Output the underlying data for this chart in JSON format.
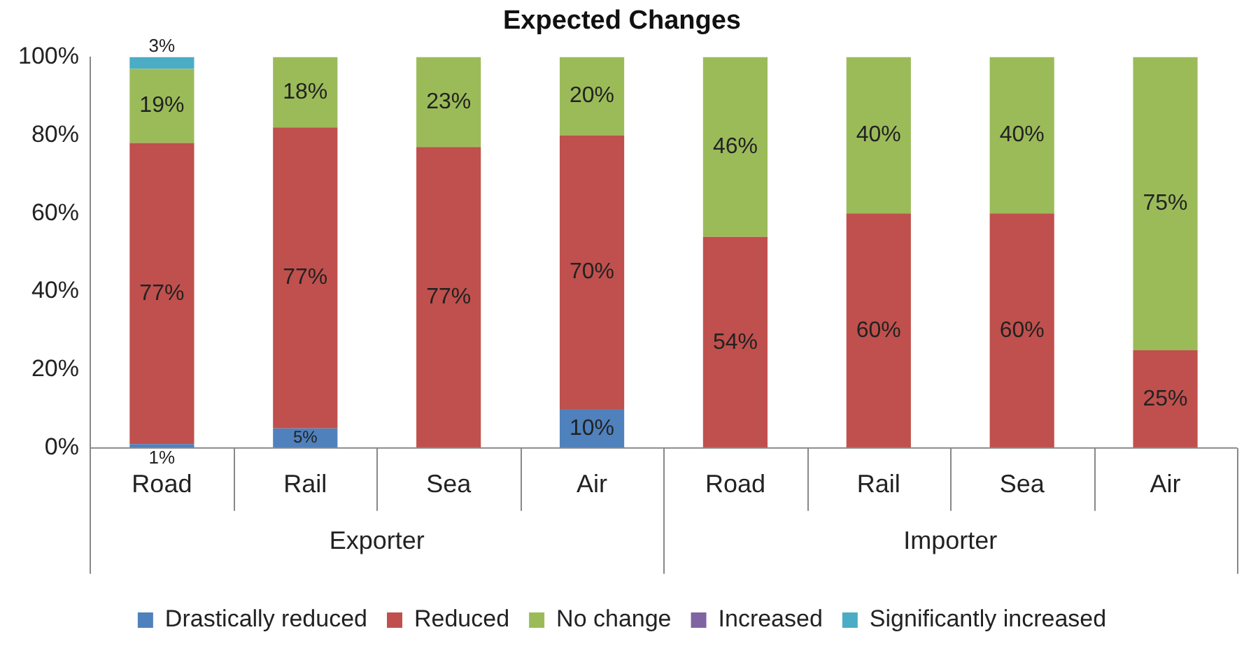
{
  "chart_data": {
    "type": "bar",
    "title": "Expected Changes",
    "stacked": true,
    "grid": false,
    "legend": "bottom",
    "categories": [
      "Road",
      "Rail",
      "Sea",
      "Air",
      "Road",
      "Rail",
      "Sea",
      "Air"
    ],
    "annotations": [
      "Exporter",
      "Importer"
    ],
    "ylim": [
      0,
      100
    ],
    "yticks": [
      {
        "value": 0,
        "label": "0%"
      },
      {
        "value": 20,
        "label": "20%"
      },
      {
        "value": 40,
        "label": "40%"
      },
      {
        "value": 60,
        "label": "60%"
      },
      {
        "value": 80,
        "label": "80%"
      },
      {
        "value": 100,
        "label": "100%"
      }
    ],
    "series": [
      {
        "name": "Drastically reduced",
        "color": "#4f81bd",
        "values": [
          1,
          5,
          0,
          10,
          0,
          0,
          0,
          0
        ],
        "value_labels": [
          "1%",
          "5%",
          null,
          "10%",
          null,
          null,
          null,
          null
        ]
      },
      {
        "name": "Reduced",
        "color": "#c0504d",
        "values": [
          77,
          77,
          77,
          70,
          54,
          60,
          60,
          25
        ],
        "value_labels": [
          "77%",
          "77%",
          "77%",
          "70%",
          "54%",
          "60%",
          "60%",
          "25%"
        ]
      },
      {
        "name": "No change",
        "color": "#9bbb59",
        "values": [
          19,
          18,
          23,
          20,
          46,
          40,
          40,
          75
        ],
        "value_labels": [
          "19%",
          "18%",
          "23%",
          "20%",
          "46%",
          "40%",
          "40%",
          "75%"
        ]
      },
      {
        "name": "Increased",
        "color": "#8064a2",
        "values": [
          0,
          0,
          0,
          0,
          0,
          0,
          0,
          0
        ],
        "value_labels": [
          null,
          null,
          null,
          null,
          null,
          null,
          null,
          null
        ]
      },
      {
        "name": "Significantly increased",
        "color": "#4bacc6",
        "values": [
          3,
          0,
          0,
          0,
          0,
          0,
          0,
          0
        ],
        "value_labels": [
          "3%",
          null,
          null,
          null,
          null,
          null,
          null,
          null
        ]
      }
    ]
  }
}
